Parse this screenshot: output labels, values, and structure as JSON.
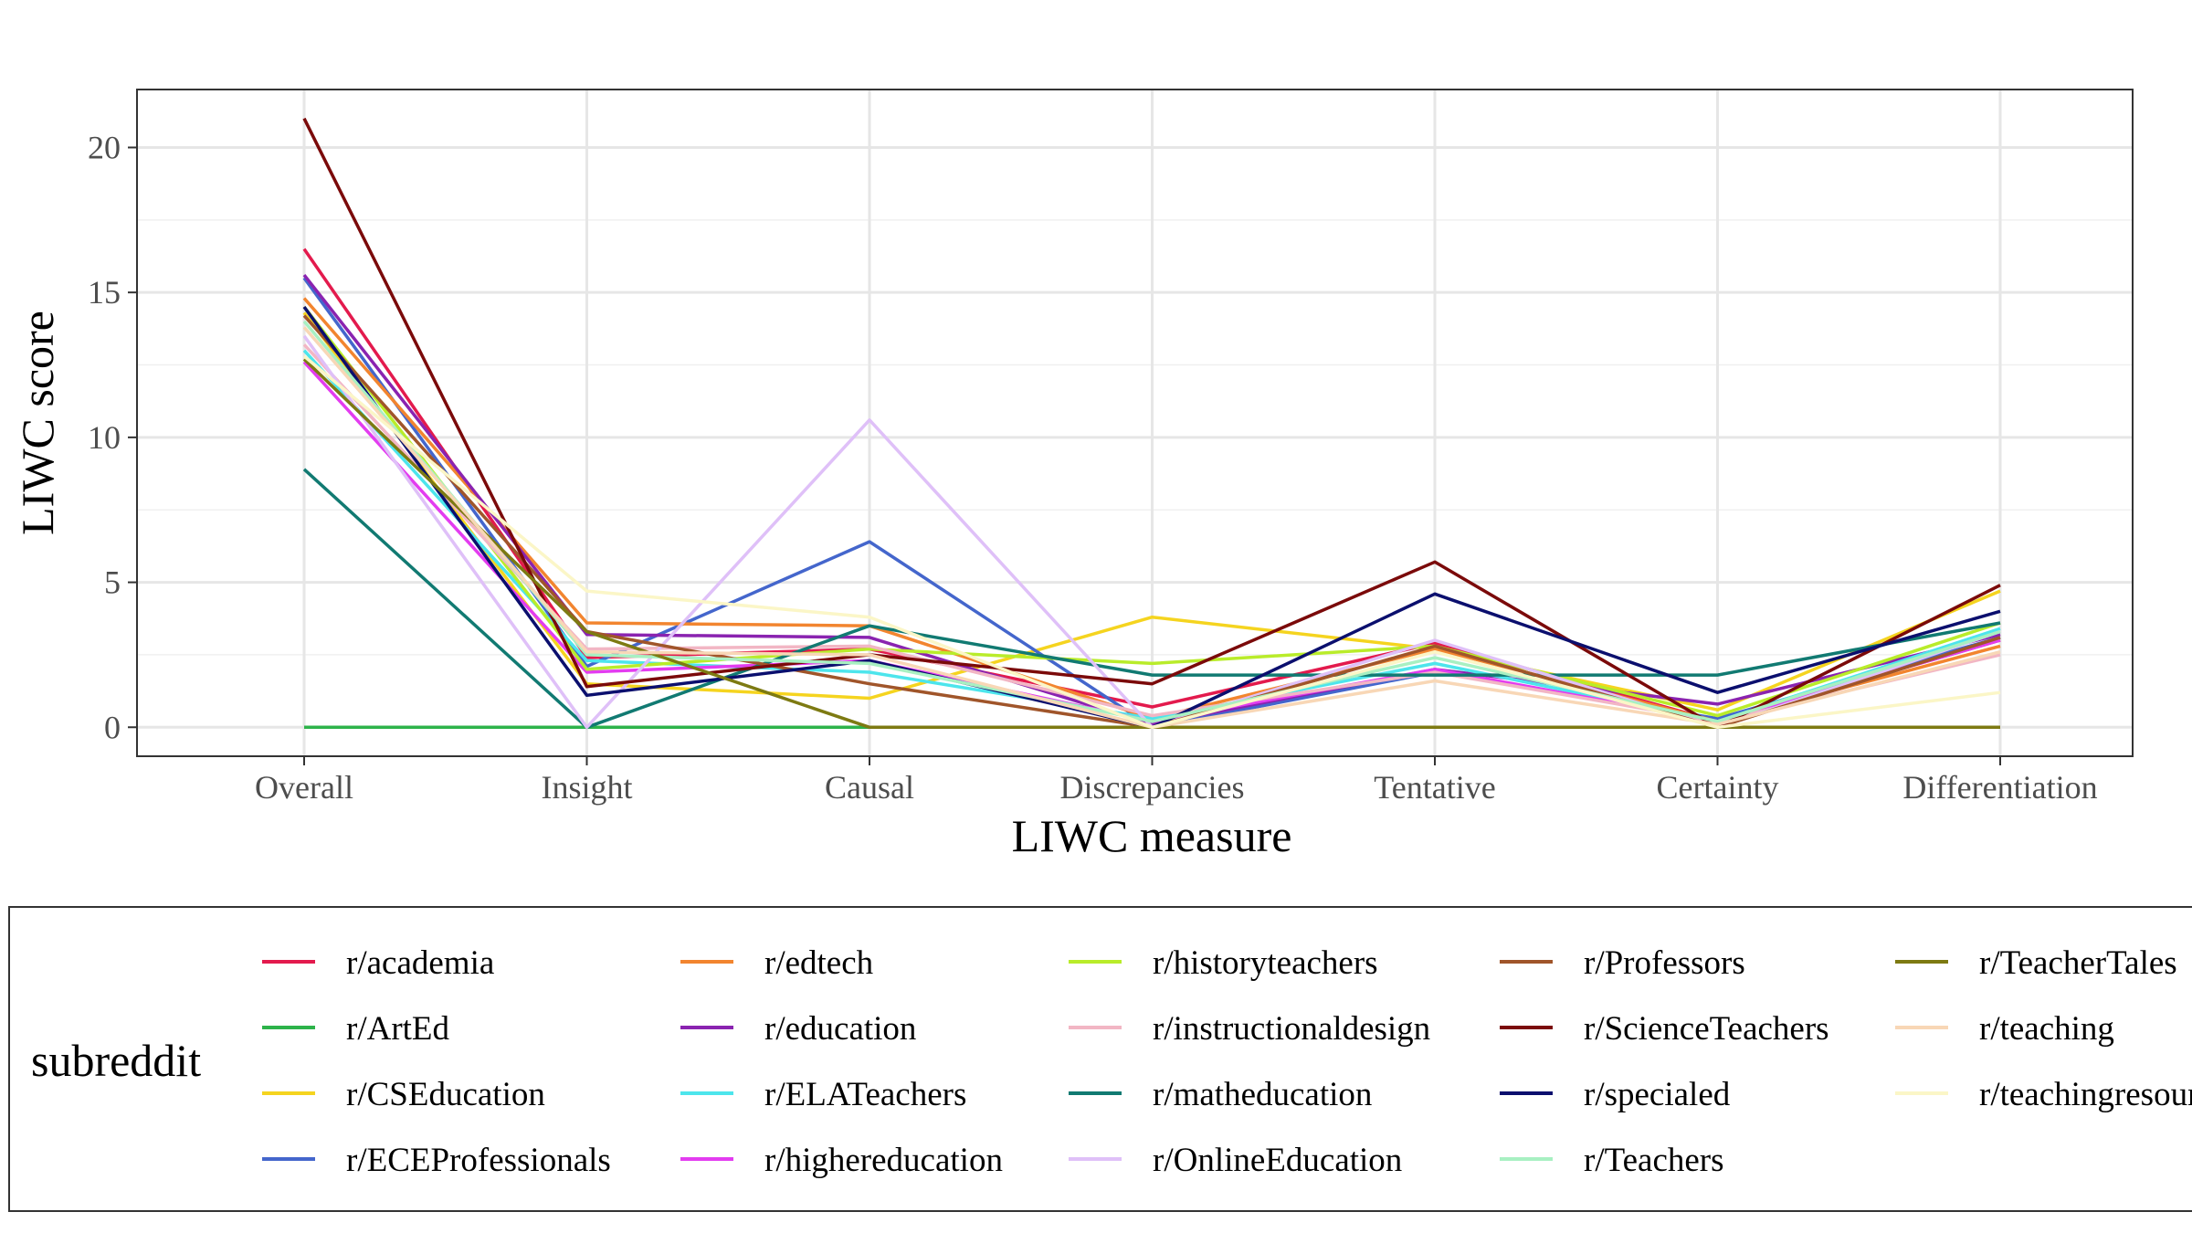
{
  "chart_data": {
    "type": "line",
    "xlabel": "LIWC measure",
    "ylabel": "LIWC score",
    "categories": [
      "Overall",
      "Insight",
      "Causal",
      "Discrepancies",
      "Tentative",
      "Certainty",
      "Differentiation"
    ],
    "yticks": [
      0,
      5,
      10,
      15,
      20
    ],
    "ylim": [
      -1,
      22
    ],
    "grid": true,
    "legend": {
      "title": "subreddit",
      "position": "bottom"
    },
    "series": [
      {
        "name": "r/academia",
        "color": "#e31a4d",
        "values": [
          16.5,
          2.4,
          2.7,
          0.7,
          2.9,
          0.2,
          3.0
        ]
      },
      {
        "name": "r/ArtEd",
        "color": "#2db34a",
        "values": [
          0,
          0,
          0,
          0,
          0,
          0,
          0
        ]
      },
      {
        "name": "r/CSEducation",
        "color": "#f5d41f",
        "values": [
          14.3,
          1.5,
          1.0,
          3.8,
          2.7,
          0.6,
          4.7
        ]
      },
      {
        "name": "r/ECEProfessionals",
        "color": "#4466cc",
        "values": [
          15.5,
          2.1,
          6.4,
          0,
          1.9,
          0.3,
          3.1
        ]
      },
      {
        "name": "r/edtech",
        "color": "#f2852f",
        "values": [
          14.8,
          3.6,
          3.5,
          0.3,
          2.7,
          0.2,
          2.8
        ]
      },
      {
        "name": "r/education",
        "color": "#8a23b0",
        "values": [
          15.6,
          3.2,
          3.1,
          0.1,
          2.0,
          0.8,
          3.2
        ]
      },
      {
        "name": "r/ELATeachers",
        "color": "#4de5ec",
        "values": [
          13.0,
          2.3,
          1.9,
          0.3,
          2.2,
          0.2,
          3.4
        ]
      },
      {
        "name": "r/highereducation",
        "color": "#e33cf0",
        "values": [
          12.6,
          1.9,
          2.3,
          0.2,
          2.0,
          0.2,
          3.0
        ]
      },
      {
        "name": "r/historyteachers",
        "color": "#b9ec2a",
        "values": [
          14.5,
          2.0,
          2.7,
          2.2,
          2.8,
          0.4,
          3.6
        ]
      },
      {
        "name": "r/instructionaldesign",
        "color": "#f2b6c4",
        "values": [
          13.2,
          2.7,
          2.8,
          0.4,
          1.9,
          0.2,
          2.5
        ]
      },
      {
        "name": "r/matheducation",
        "color": "#117a72",
        "values": [
          8.9,
          0,
          3.5,
          1.8,
          1.8,
          1.8,
          3.6
        ]
      },
      {
        "name": "r/OnlineEducation",
        "color": "#dfc0f8",
        "values": [
          13.5,
          0,
          10.6,
          0,
          3.0,
          0,
          3.3
        ]
      },
      {
        "name": "r/Professors",
        "color": "#a0552a",
        "values": [
          14.2,
          3.3,
          1.5,
          0,
          2.8,
          0,
          3.1
        ]
      },
      {
        "name": "r/ScienceTeachers",
        "color": "#7b0a0a",
        "values": [
          21.0,
          1.4,
          2.5,
          1.5,
          5.7,
          0,
          4.9
        ]
      },
      {
        "name": "r/specialed",
        "color": "#0b0f6e",
        "values": [
          14.5,
          1.1,
          2.3,
          0,
          4.6,
          1.2,
          4.0
        ]
      },
      {
        "name": "r/Teachers",
        "color": "#a8f0c2",
        "values": [
          14.0,
          2.5,
          2.2,
          0.2,
          2.4,
          0.2,
          3.3
        ]
      },
      {
        "name": "r/TeacherTales",
        "color": "#7d7a12",
        "values": [
          12.7,
          3.3,
          0,
          0,
          0,
          0,
          0
        ]
      },
      {
        "name": "r/teaching",
        "color": "#f8d7b6",
        "values": [
          13.8,
          2.6,
          2.5,
          0,
          1.6,
          0.1,
          2.6
        ]
      },
      {
        "name": "r/teachingresources",
        "color": "#fbf6c7",
        "values": [
          12.8,
          4.7,
          3.8,
          0,
          2.6,
          0,
          1.2
        ]
      }
    ]
  }
}
